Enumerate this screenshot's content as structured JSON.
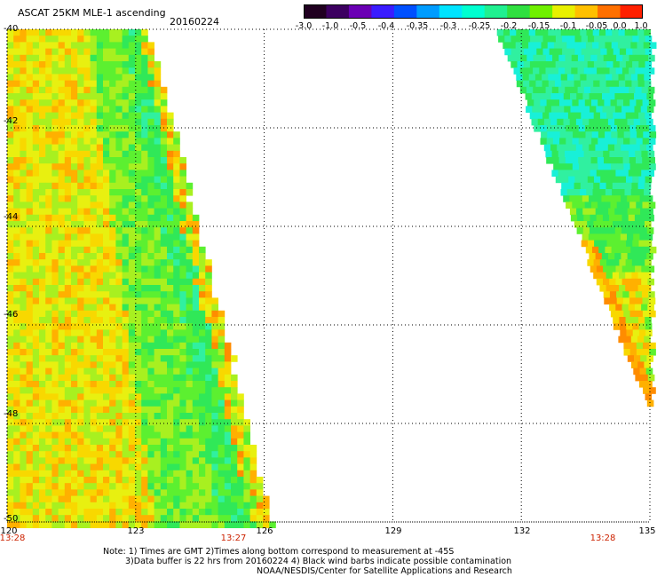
{
  "header": {
    "title": "ASCAT 25KM MLE-1 ascending",
    "date": "20160224"
  },
  "colorbar": {
    "labels": [
      "-3.0",
      "-1.0",
      "-0.5",
      "-0.4",
      "-0.35",
      "-0.3",
      "-0.25",
      "-0.2",
      "-0.15",
      "-0.1",
      "-0.05",
      "0.0",
      "1.0"
    ],
    "colors": [
      "#200020",
      "#3c0060",
      "#6a00b4",
      "#3a1cff",
      "#0050ff",
      "#009cff",
      "#00e4ff",
      "#00ffd0",
      "#20f090",
      "#30e040",
      "#70f000",
      "#e8f000",
      "#ffc000",
      "#ff7000",
      "#ff2000"
    ]
  },
  "axes": {
    "lat_labels": [
      "-40",
      "-42",
      "-44",
      "-46",
      "-48",
      "-50"
    ],
    "lon_labels": [
      "120",
      "123",
      "126",
      "129",
      "132",
      "135"
    ],
    "time_labels": [
      "13:28",
      "13:27",
      "13:28"
    ],
    "lon_range": [
      120,
      135
    ],
    "lat_range": [
      -50,
      -40
    ]
  },
  "notes": [
    "Note: 1) Times are GMT 2)Times along bottom correspond to measurement at -45S",
    "3)Data buffer is 22 hrs from 20160224 4) Black wind barbs indicate possible contamination",
    "NOAA/NESDIS/Center for Satellite Applications and Research"
  ]
}
